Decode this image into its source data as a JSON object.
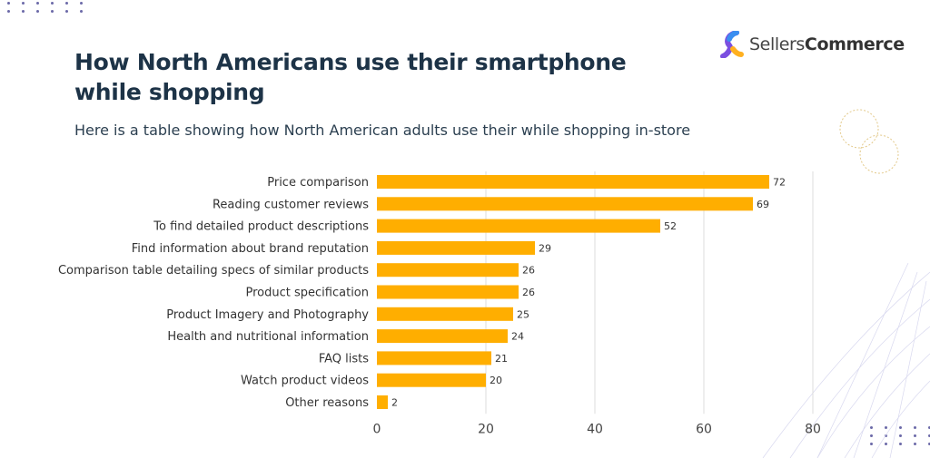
{
  "logo": {
    "text_light": "Sellers",
    "text_bold": "Commerce"
  },
  "title": "How North Americans use their smartphone while shopping",
  "subtitle": "Here is a table showing how North American adults use their while shopping in-store",
  "colors": {
    "bar": "#FFAE00",
    "title": "#1d3347",
    "grid": "#dddddd"
  },
  "chart_data": {
    "type": "bar",
    "orientation": "horizontal",
    "title": "How North Americans use their smartphone while shopping",
    "subtitle": "Here is a table showing how North American adults use their while shopping in-store",
    "categories": [
      "Price comparison",
      "Reading customer reviews",
      "To find detailed product descriptions",
      "Find information about brand reputation",
      "Comparison table detailing specs of similar products",
      "Product specification",
      "Product Imagery and Photography",
      "Health and nutritional information",
      "FAQ lists",
      "Watch product videos",
      "Other reasons"
    ],
    "values": [
      72,
      69,
      52,
      29,
      26,
      26,
      25,
      24,
      21,
      20,
      2
    ],
    "xlim": [
      0,
      80
    ],
    "xticks": [
      0,
      20,
      40,
      60,
      80
    ],
    "grid": true,
    "data_labels": true
  }
}
